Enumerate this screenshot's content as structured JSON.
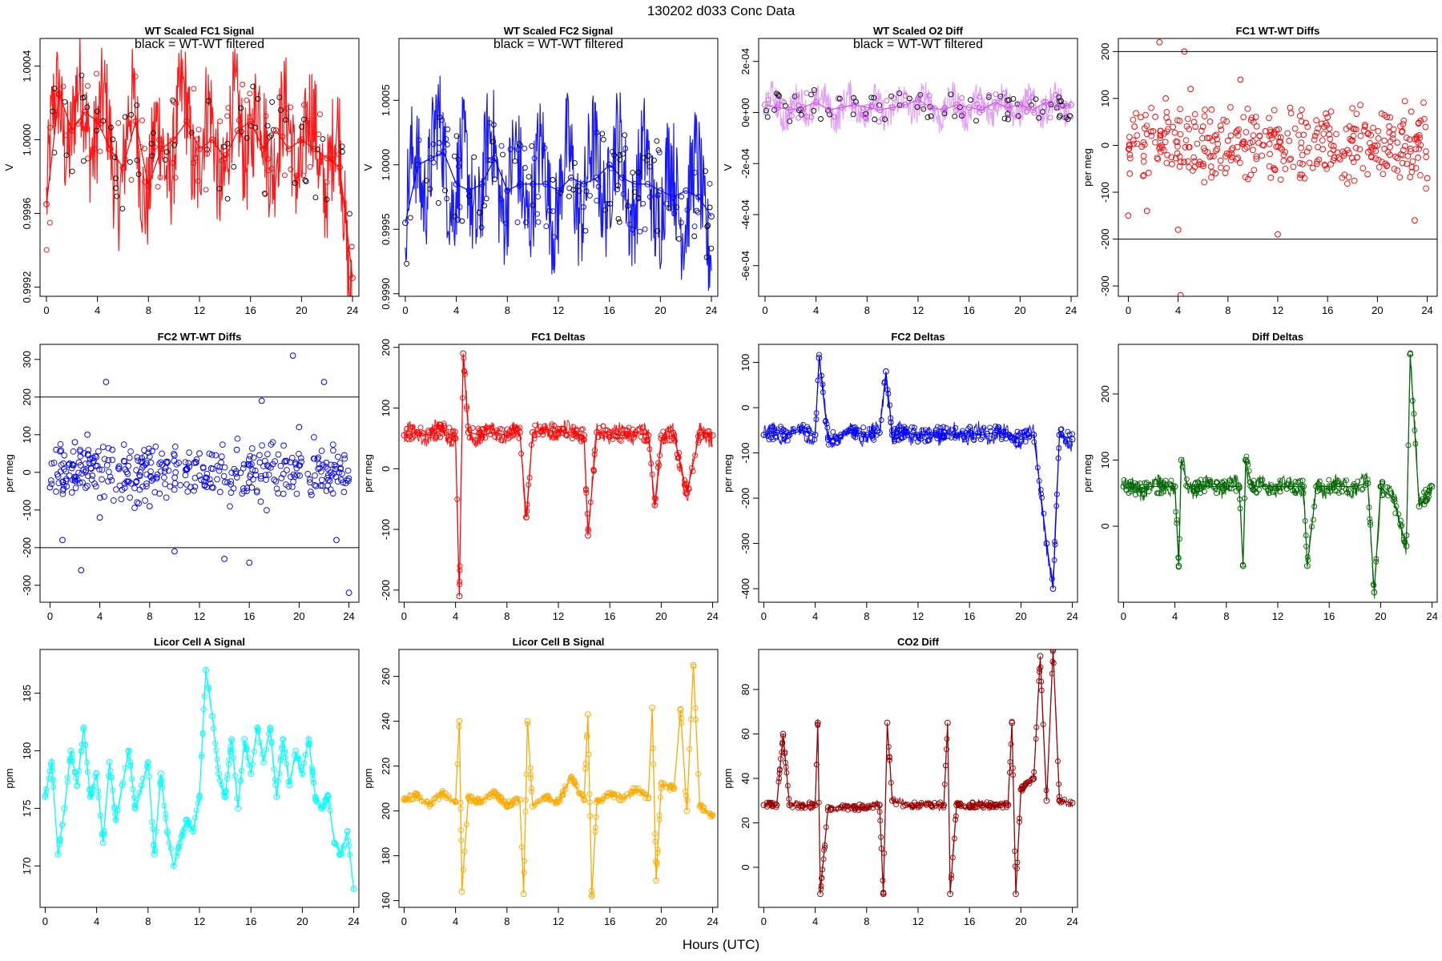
{
  "figure": {
    "title": "130202   d033   Conc Data",
    "xlabel": "Hours (UTC)"
  },
  "chart_data": [
    {
      "id": "p1",
      "type": "line",
      "title": "WT Scaled FC1 Signal",
      "subtitle": "black = WT-WT filtered",
      "ylabel": "V",
      "color": "#ff0000",
      "overlay_color": "#000000",
      "xlim": [
        -0.5,
        24.5
      ],
      "ylim": [
        0.99915,
        1.00055
      ],
      "x_ticks": [
        0,
        4,
        8,
        12,
        16,
        20,
        24
      ],
      "y_ticks": [
        0.9992,
        0.9996,
        1.0,
        1.0004
      ],
      "y_tick_labels": [
        "0.9992",
        "0.9996",
        "1.0000",
        "1.0004"
      ],
      "series": [
        {
          "x": [
            0,
            1,
            2,
            3,
            4,
            5,
            6,
            7,
            8,
            9,
            10,
            11,
            12,
            13,
            14,
            15,
            16,
            17,
            18,
            19,
            20,
            21,
            22,
            23,
            24
          ],
          "y": [
            0.99965,
            1.00025,
            1.00005,
            1.00015,
            1.0001,
            0.99995,
            0.99985,
            1.0001,
            0.99975,
            0.99995,
            1.0,
            1.0001,
            0.99995,
            1.0,
            0.9999,
            1.00005,
            1.0001,
            0.99995,
            1.00005,
            0.99995,
            1.0,
            0.99995,
            0.9999,
            0.99985,
            0.99925
          ]
        }
      ]
    },
    {
      "id": "p2",
      "type": "line",
      "title": "WT Scaled FC2 Signal",
      "subtitle": "black = WT-WT filtered",
      "ylabel": "V",
      "color": "#0000ff",
      "overlay_color": "#000000",
      "xlim": [
        -0.5,
        24.5
      ],
      "ylim": [
        0.99898,
        1.00098
      ],
      "x_ticks": [
        0,
        4,
        8,
        12,
        16,
        20,
        24
      ],
      "y_ticks": [
        0.999,
        0.9995,
        1.0,
        1.0005
      ],
      "y_tick_labels": [
        "0.9990",
        "0.9995",
        "1.0000",
        "1.0005"
      ],
      "series": [
        {
          "x": [
            0,
            1,
            2,
            3,
            4,
            5,
            6,
            7,
            8,
            9,
            10,
            11,
            12,
            13,
            14,
            15,
            16,
            17,
            18,
            19,
            20,
            21,
            22,
            23,
            24
          ],
          "y": [
            0.99955,
            1.0,
            1.00005,
            1.0001,
            0.99985,
            0.9998,
            0.99985,
            1.00005,
            0.9998,
            0.99985,
            0.99985,
            0.99985,
            0.9998,
            0.9999,
            0.99985,
            0.9999,
            1.0,
            0.9999,
            0.99985,
            0.99985,
            0.9998,
            0.99975,
            0.9998,
            0.99975,
            0.9996
          ]
        }
      ]
    },
    {
      "id": "p3",
      "type": "line",
      "title": "WT Scaled O2 Diff",
      "subtitle": "black = WT-WT filtered",
      "ylabel": "V",
      "color": "#cc55ee",
      "overlay_color": "#000000",
      "xlim": [
        -0.5,
        24.5
      ],
      "ylim": [
        -0.00072,
        0.00029
      ],
      "x_ticks": [
        0,
        4,
        8,
        12,
        16,
        20,
        24
      ],
      "y_ticks": [
        -0.0006,
        -0.0004,
        -0.0002,
        0,
        0.0002
      ],
      "y_tick_labels": [
        "-6e-04",
        "-4e-04",
        "-2e-04",
        "0e+00",
        "2e-04"
      ],
      "series": [
        {
          "x": [
            0,
            1,
            2,
            3,
            4,
            5,
            6,
            7,
            8,
            9,
            10,
            11,
            12,
            13,
            14,
            15,
            16,
            17,
            18,
            19,
            20,
            21,
            22,
            23,
            24
          ],
          "y": [
            3e-05,
            2e-05,
            1e-05,
            2e-05,
            4e-05,
            1e-05,
            2e-05,
            3e-05,
            2e-05,
            1e-05,
            2e-05,
            3e-05,
            5e-05,
            2e-05,
            1e-05,
            3e-05,
            2e-05,
            1e-05,
            4e-05,
            2e-05,
            3e-05,
            1e-05,
            4e-05,
            2e-05,
            3e-05
          ]
        }
      ]
    },
    {
      "id": "p4",
      "type": "scatter",
      "title": "FC1 WT-WT Diffs",
      "ylabel": "per meg",
      "color": "#ff0000",
      "xlim": [
        -0.8,
        24.8
      ],
      "ylim": [
        -322,
        228
      ],
      "x_ticks": [
        0,
        4,
        8,
        12,
        16,
        20,
        24
      ],
      "y_ticks": [
        -300,
        -200,
        -100,
        0,
        100,
        200
      ],
      "y_tick_labels": [
        "-300",
        "-200",
        "-100",
        "0",
        "100",
        "200"
      ],
      "hlines": [
        200,
        -200
      ],
      "series": [
        {
          "x": [
            0,
            0.5,
            1,
            1.5,
            2,
            2.5,
            3,
            3.5,
            4,
            4.2,
            4.5,
            5,
            6,
            7,
            8,
            9,
            10,
            11,
            12,
            13,
            14,
            15,
            16,
            17,
            18,
            19,
            20,
            21,
            22,
            23,
            24
          ],
          "y": [
            -150,
            40,
            60,
            -140,
            30,
            220,
            100,
            -40,
            -180,
            -320,
            200,
            120,
            40,
            -60,
            10,
            140,
            -10,
            30,
            -190,
            80,
            -40,
            20,
            60,
            -30,
            10,
            40,
            0,
            -20,
            30,
            -160,
            -70
          ]
        }
      ]
    },
    {
      "id": "p5",
      "type": "scatter",
      "title": "FC2 WT-WT Diffs",
      "ylabel": "per meg",
      "color": "#0000ff",
      "xlim": [
        -0.8,
        24.8
      ],
      "ylim": [
        -345,
        340
      ],
      "x_ticks": [
        0,
        4,
        8,
        12,
        16,
        20,
        24
      ],
      "y_ticks": [
        -300,
        -200,
        -100,
        0,
        100,
        200,
        300
      ],
      "y_tick_labels": [
        "-300",
        "-200",
        "-100",
        "0",
        "100",
        "200",
        "300"
      ],
      "hlines": [
        200,
        -200
      ],
      "series": [
        {
          "x": [
            0,
            0.5,
            1,
            1.5,
            2,
            2.5,
            3,
            3.5,
            4,
            4.5,
            5,
            6,
            7,
            8,
            9,
            10,
            11,
            12,
            13,
            14,
            15,
            16,
            17,
            18,
            19,
            19.5,
            20,
            21,
            22,
            23,
            24
          ],
          "y": [
            -40,
            60,
            -180,
            20,
            80,
            -260,
            100,
            30,
            -120,
            240,
            60,
            -30,
            40,
            -90,
            20,
            -210,
            10,
            50,
            -40,
            -230,
            60,
            -240,
            190,
            -20,
            30,
            310,
            120,
            -60,
            240,
            -180,
            -320
          ]
        }
      ]
    },
    {
      "id": "p6",
      "type": "line",
      "title": "FC1 Deltas",
      "ylabel": "per meg",
      "color": "#ff0000",
      "xlim": [
        -0.4,
        24.4
      ],
      "ylim": [
        -220,
        205
      ],
      "x_ticks": [
        0,
        4,
        8,
        12,
        16,
        20,
        24
      ],
      "y_ticks": [
        -200,
        -100,
        0,
        100,
        200
      ],
      "y_tick_labels": [
        "-200",
        "-100",
        "0",
        "100",
        "200"
      ],
      "series": [
        {
          "x": [
            0,
            1,
            2,
            3,
            4,
            4.3,
            4.6,
            5,
            6,
            7,
            8,
            9,
            9.5,
            10,
            11,
            12,
            13,
            14,
            14.3,
            15,
            16,
            17,
            18,
            19,
            19.5,
            20,
            21,
            22,
            23,
            24
          ],
          "y": [
            55,
            60,
            55,
            65,
            50,
            -210,
            190,
            60,
            55,
            60,
            55,
            60,
            -80,
            60,
            65,
            60,
            60,
            55,
            -110,
            60,
            60,
            55,
            60,
            55,
            -60,
            50,
            55,
            -40,
            60,
            55
          ]
        }
      ]
    },
    {
      "id": "p7",
      "type": "line",
      "title": "FC2 Deltas",
      "ylabel": "per meg",
      "color": "#0000ff",
      "xlim": [
        -0.4,
        24.4
      ],
      "ylim": [
        -430,
        140
      ],
      "x_ticks": [
        0,
        4,
        8,
        12,
        16,
        20,
        24
      ],
      "y_ticks": [
        -400,
        -300,
        -200,
        -100,
        0,
        100
      ],
      "y_tick_labels": [
        "-400",
        "-300",
        "-200",
        "-100",
        "0",
        "100"
      ],
      "series": [
        {
          "x": [
            0,
            1,
            2,
            3,
            4,
            4.3,
            5,
            6,
            7,
            8,
            9,
            9.5,
            10,
            11,
            12,
            13,
            14,
            15,
            16,
            17,
            18,
            19,
            20,
            21,
            22,
            22.5,
            23,
            24
          ],
          "y": [
            -60,
            -55,
            -60,
            -50,
            -60,
            110,
            -70,
            -60,
            -55,
            -60,
            -55,
            80,
            -60,
            -55,
            -60,
            -60,
            -55,
            -60,
            -55,
            -60,
            -55,
            -60,
            -70,
            -60,
            -300,
            -400,
            -60,
            -70
          ]
        }
      ]
    },
    {
      "id": "p8",
      "type": "line",
      "title": "Diff Deltas",
      "ylabel": "per meg",
      "color": "#006600",
      "xlim": [
        -0.4,
        24.4
      ],
      "ylim": [
        -115,
        275
      ],
      "x_ticks": [
        0,
        4,
        8,
        12,
        16,
        20,
        24
      ],
      "y_ticks": [
        0,
        100,
        200
      ],
      "y_tick_labels": [
        "0",
        "100",
        "200"
      ],
      "series": [
        {
          "x": [
            0,
            1,
            2,
            3,
            4,
            4.3,
            4.5,
            5,
            6,
            7,
            8,
            9,
            9.3,
            9.5,
            10,
            11,
            12,
            13,
            14,
            14.3,
            15,
            16,
            17,
            18,
            19,
            19.5,
            20,
            21,
            22,
            22.3,
            23,
            24
          ],
          "y": [
            60,
            55,
            60,
            60,
            60,
            -60,
            100,
            60,
            60,
            60,
            60,
            60,
            -60,
            100,
            60,
            60,
            60,
            60,
            60,
            -60,
            60,
            60,
            60,
            60,
            65,
            -100,
            60,
            40,
            -30,
            260,
            30,
            60
          ]
        }
      ]
    },
    {
      "id": "p9",
      "type": "line",
      "title": "Licor Cell A Signal",
      "ylabel": "ppm",
      "color": "#00ffff",
      "xlim": [
        -0.4,
        24.4
      ],
      "ylim": [
        166.4,
        188.8
      ],
      "x_ticks": [
        0,
        4,
        8,
        12,
        16,
        20,
        24
      ],
      "y_ticks": [
        170,
        175,
        180,
        185
      ],
      "y_tick_labels": [
        "170",
        "175",
        "180",
        "185"
      ],
      "series": [
        {
          "x": [
            0,
            0.5,
            1,
            1.5,
            2,
            2.5,
            3,
            3.5,
            4,
            4.5,
            5,
            5.5,
            6,
            6.5,
            7,
            7.5,
            8,
            8.5,
            9,
            9.5,
            10,
            10.5,
            11,
            11.5,
            12,
            12.5,
            13,
            13.5,
            14,
            14.5,
            15,
            15.5,
            16,
            16.5,
            17,
            17.5,
            18,
            18.5,
            19,
            19.5,
            20,
            20.5,
            21,
            21.5,
            22,
            22.5,
            23,
            23.5,
            24
          ],
          "y": [
            176,
            179,
            171,
            175,
            180,
            177,
            182,
            176,
            178,
            172,
            179,
            174,
            177,
            180,
            175,
            177,
            179,
            171,
            178,
            173,
            170,
            172,
            174,
            173,
            176,
            187,
            183,
            178,
            176,
            181,
            175,
            181,
            178,
            182,
            179,
            182,
            176,
            181,
            177,
            180,
            178,
            181,
            176,
            175,
            176,
            172,
            171,
            173,
            168
          ]
        }
      ]
    },
    {
      "id": "p10",
      "type": "line",
      "title": "Licor Cell B Signal",
      "ylabel": "ppm",
      "color": "#ffaa00",
      "xlim": [
        -0.4,
        24.4
      ],
      "ylim": [
        157,
        272
      ],
      "x_ticks": [
        0,
        4,
        8,
        12,
        16,
        20,
        24
      ],
      "y_ticks": [
        160,
        180,
        200,
        220,
        240,
        260
      ],
      "y_tick_labels": [
        "160",
        "180",
        "200",
        "220",
        "240",
        "260"
      ],
      "series": [
        {
          "x": [
            0,
            1,
            2,
            3,
            4,
            4.3,
            4.5,
            5,
            6,
            7,
            8,
            9,
            9.3,
            9.6,
            10,
            11,
            12,
            13,
            14,
            14.3,
            14.6,
            15,
            16,
            17,
            18,
            19,
            19.3,
            19.6,
            20,
            21,
            21.5,
            22,
            22.5,
            23,
            24
          ],
          "y": [
            205,
            207,
            203,
            208,
            204,
            240,
            164,
            206,
            204,
            208,
            203,
            205,
            163,
            240,
            202,
            206,
            204,
            215,
            205,
            243,
            162,
            204,
            208,
            205,
            210,
            206,
            246,
            169,
            212,
            210,
            245,
            200,
            265,
            202,
            198
          ]
        }
      ]
    },
    {
      "id": "p11",
      "type": "line",
      "title": "CO2 Diff",
      "ylabel": "ppm",
      "color": "#990000",
      "xlim": [
        -0.4,
        24.4
      ],
      "ylim": [
        -18,
        98
      ],
      "x_ticks": [
        0,
        4,
        8,
        12,
        16,
        20,
        24
      ],
      "y_ticks": [
        0,
        20,
        40,
        60,
        80
      ],
      "y_tick_labels": [
        "0",
        "20",
        "40",
        "60",
        "80"
      ],
      "series": [
        {
          "x": [
            0,
            1,
            1.5,
            2,
            3,
            4,
            4.2,
            4.4,
            5,
            6,
            7,
            8,
            9,
            9.3,
            9.6,
            10,
            11,
            12,
            13,
            14,
            14.3,
            14.5,
            15,
            16,
            17,
            18,
            19,
            19.3,
            19.6,
            20,
            21,
            21.5,
            22,
            22.5,
            23,
            24
          ],
          "y": [
            28,
            28,
            60,
            28,
            28,
            28,
            65,
            -12,
            27,
            27,
            27,
            27,
            28,
            -12,
            65,
            30,
            28,
            28,
            28,
            28,
            65,
            -12,
            28,
            28,
            28,
            28,
            28,
            65,
            -12,
            35,
            40,
            95,
            30,
            98,
            30,
            29
          ]
        }
      ]
    }
  ]
}
